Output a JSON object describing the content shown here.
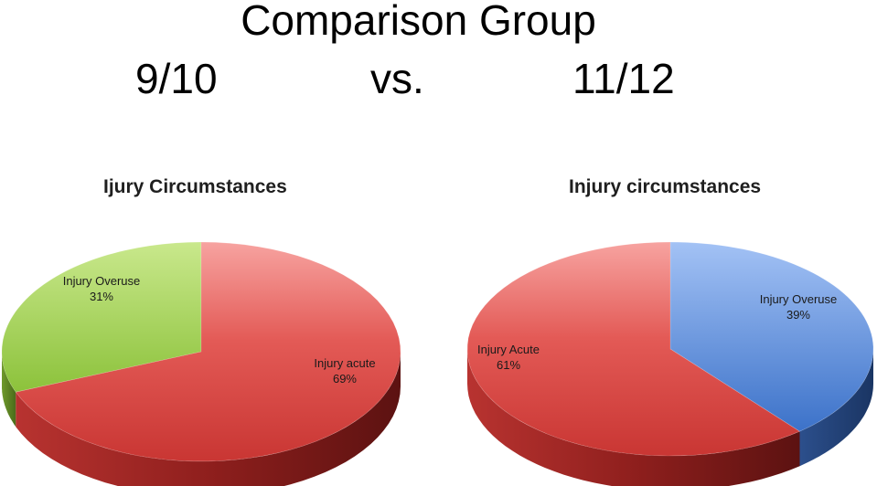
{
  "title": {
    "line1": "Comparison Group",
    "left": "9/10",
    "mid": "vs.",
    "right": "11/12"
  },
  "chart_data": [
    {
      "type": "pie",
      "title": "Ijury  Circumstances",
      "three_d": true,
      "slices": [
        {
          "label": "Injury Overuse",
          "value": 31,
          "pct_label": "31%",
          "color": "#9acc46"
        },
        {
          "label": "Injury acute",
          "value": 69,
          "pct_label": "69%",
          "color": "#d94b48"
        }
      ]
    },
    {
      "type": "pie",
      "title": "Injury circumstances",
      "three_d": true,
      "slices": [
        {
          "label": "Injury Overuse",
          "value": 39,
          "pct_label": "39%",
          "color": "#4a7fd0"
        },
        {
          "label": "Injury Acute",
          "value": 61,
          "pct_label": "61%",
          "color": "#d94b48"
        }
      ]
    }
  ]
}
